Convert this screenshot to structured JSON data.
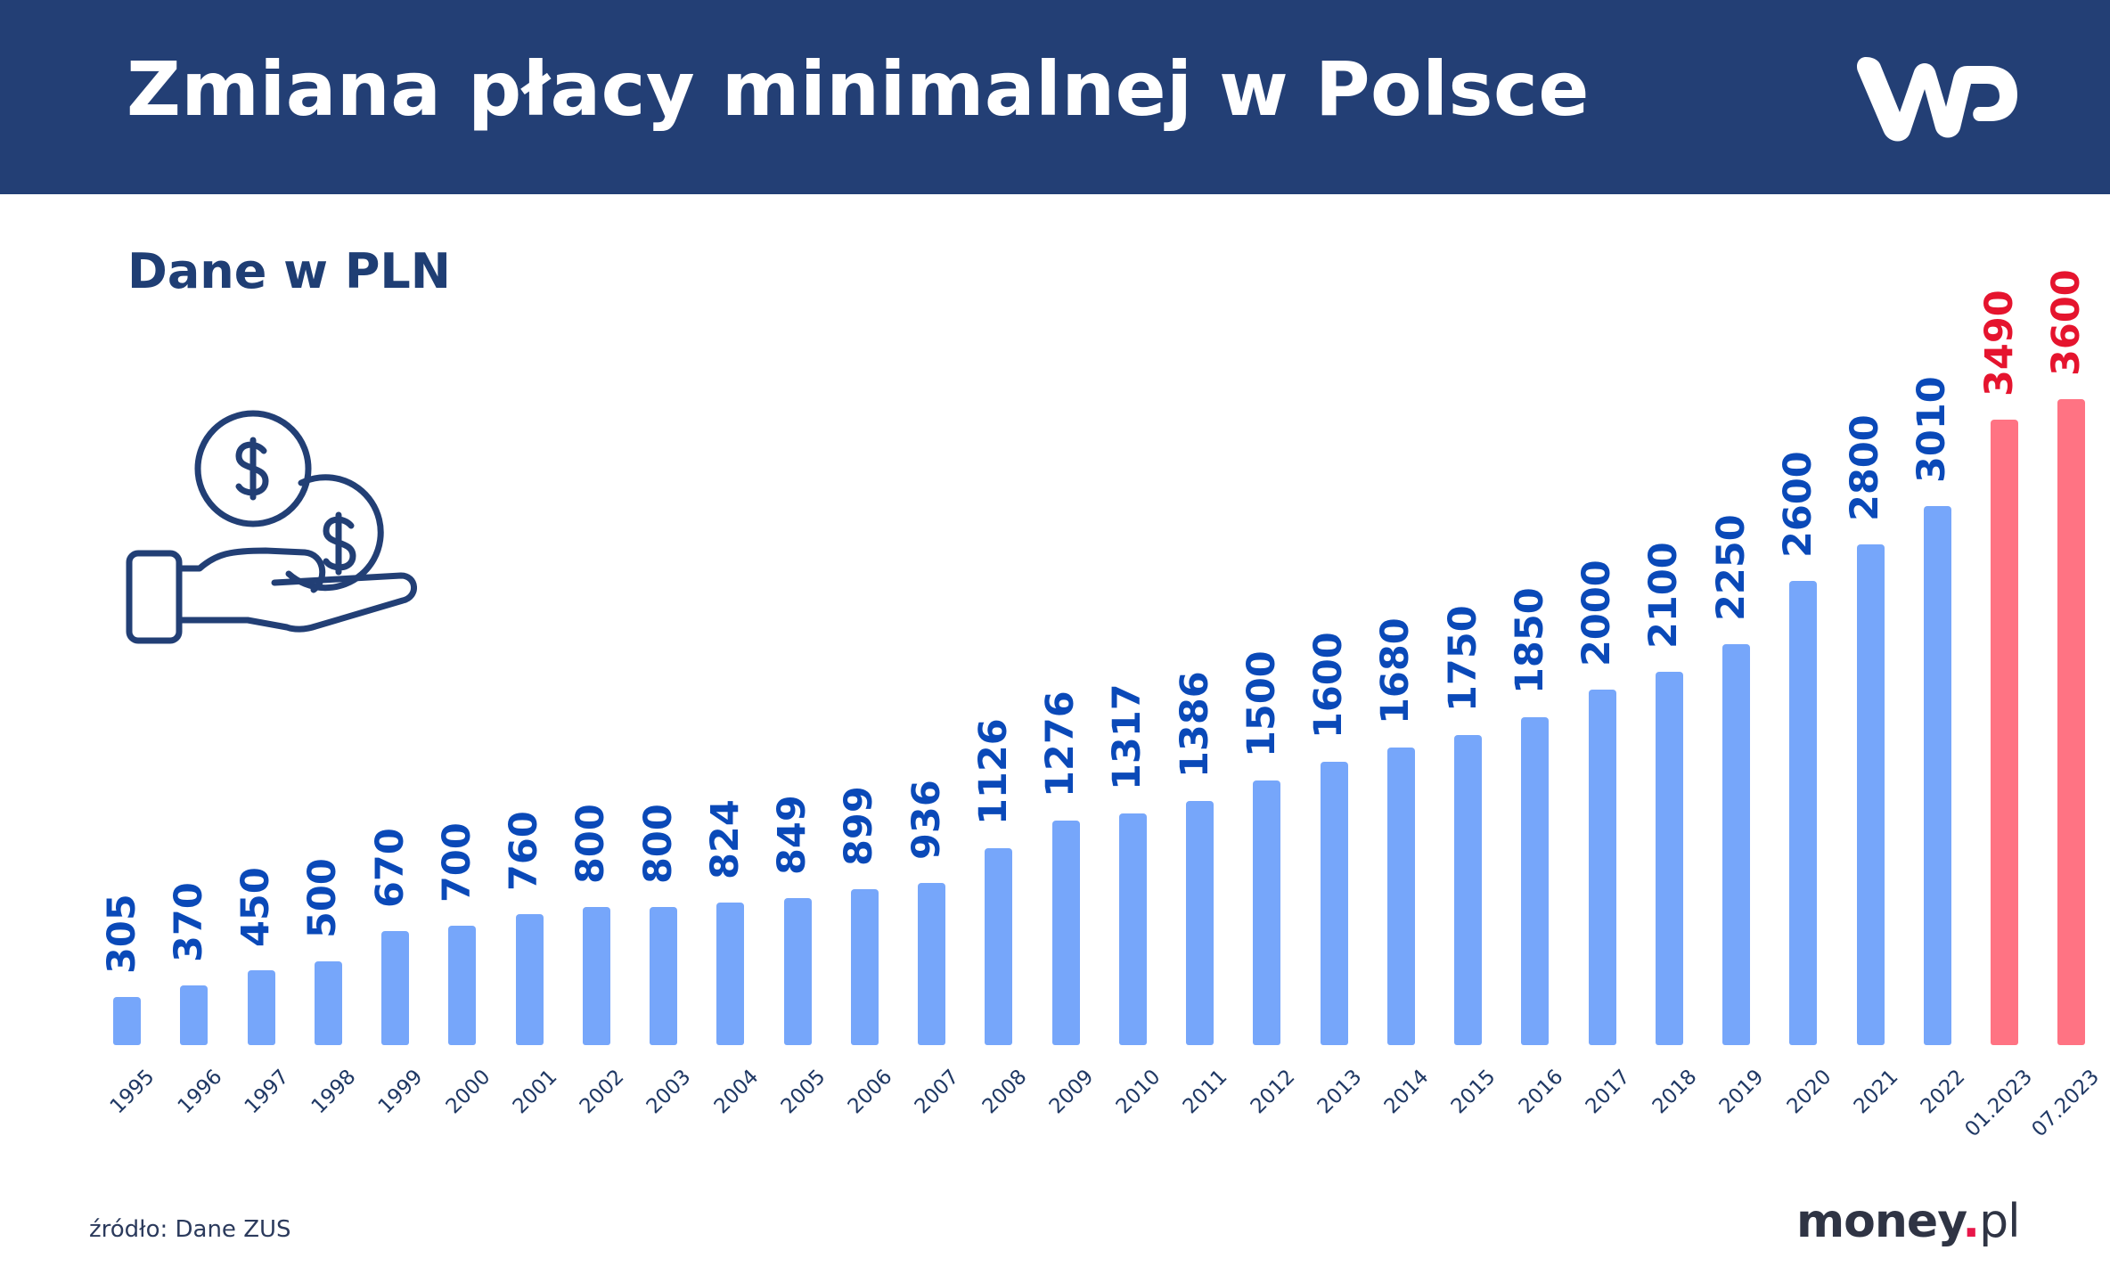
{
  "header": {
    "title": "Zmiana płacy minimalnej w Polsce",
    "logo": "WP",
    "background_color": "#233f75"
  },
  "subtitle": "Dane w PLN",
  "icon": "hand-holding-coins-icon",
  "footer": {
    "source": "źródło: Dane ZUS",
    "brand_name": "money",
    "brand_dot": ".",
    "brand_suffix": "pl"
  },
  "colors": {
    "bar_historical": "#76a6fa",
    "bar_future": "#ff7383",
    "label_historical": "#0a49b8",
    "label_future": "#e5142e",
    "axis_label": "#1f3864"
  },
  "chart_data": {
    "type": "bar",
    "title": "Zmiana płacy minimalnej w Polsce",
    "subtitle": "Dane w PLN",
    "xlabel": "",
    "ylabel": "PLN",
    "grid": false,
    "legend": "none",
    "ylim": [
      0,
      3600
    ],
    "categories": [
      "1995",
      "1996",
      "1997",
      "1998",
      "1999",
      "2000",
      "2001",
      "2002",
      "2003",
      "2004",
      "2005",
      "2006",
      "2007",
      "2008",
      "2009",
      "2010",
      "2011",
      "2012",
      "2013",
      "2014",
      "2015",
      "2016",
      "2017",
      "2018",
      "2019",
      "2020",
      "2021",
      "2022",
      "01.2023",
      "07.2023"
    ],
    "values": [
      305,
      370,
      450,
      500,
      670,
      700,
      760,
      800,
      800,
      824,
      849,
      899,
      936,
      1126,
      1276,
      1317,
      1386,
      1500,
      1600,
      1680,
      1750,
      1850,
      2000,
      2100,
      2250,
      2600,
      2800,
      3010,
      3490,
      3600
    ],
    "highlighted": [
      "01.2023",
      "07.2023"
    ],
    "source": "źródło: Dane ZUS"
  }
}
